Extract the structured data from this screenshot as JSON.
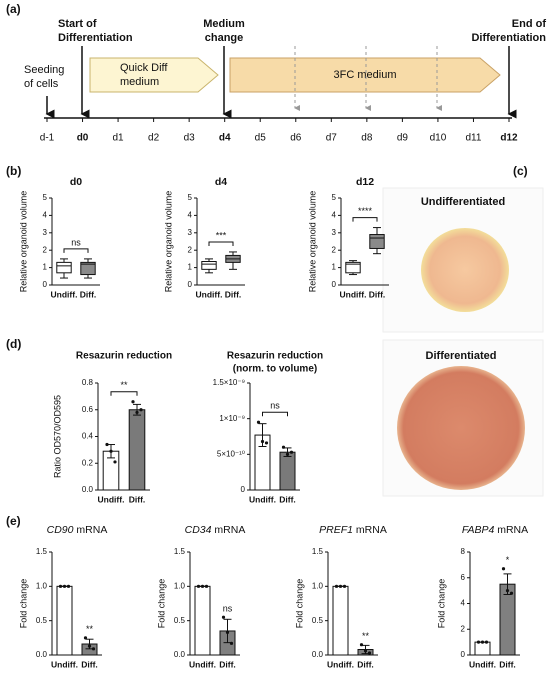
{
  "timeline": {
    "panel": "(a)",
    "seeding": [
      "Seeding",
      "of cells"
    ],
    "start": [
      "Start of",
      "Differentiation"
    ],
    "change": [
      "Medium",
      "change"
    ],
    "end": [
      "End of",
      "Differentiation"
    ],
    "quick": [
      "Quick Diff",
      "medium"
    ],
    "three": "3FC medium",
    "days": [
      "d-1",
      "d0",
      "d1",
      "d2",
      "d3",
      "d4",
      "d5",
      "d6",
      "d7",
      "d8",
      "d9",
      "d10",
      "d11",
      "d12"
    ],
    "bold": [
      1,
      5,
      13
    ]
  },
  "panels": {
    "b": "(b)",
    "c": "(c)",
    "d": "(d)",
    "e": "(e)"
  },
  "images": [
    {
      "label": "Undifferentiated"
    },
    {
      "label": "Differentiated"
    }
  ],
  "chart_data": [
    {
      "type": "box",
      "title": "d0",
      "y_label": "Relative organoid volume",
      "categories": [
        "Undiff.",
        "Diff."
      ],
      "colors": [
        "#ffffff",
        "#8a8a8a"
      ],
      "boxes": [
        {
          "min": 0.4,
          "q1": 0.7,
          "median": 1.1,
          "q3": 1.3,
          "max": 1.5
        },
        {
          "min": 0.4,
          "q1": 0.6,
          "median": 1.2,
          "q3": 1.3,
          "max": 1.5
        }
      ],
      "ylim": [
        0,
        5
      ],
      "yticks": [
        0,
        1,
        2,
        3,
        4,
        5
      ],
      "significance": "ns",
      "bracket": true
    },
    {
      "type": "box",
      "title": "d4",
      "y_label": "Relative organoid volume",
      "categories": [
        "Undiff.",
        "Diff."
      ],
      "colors": [
        "#ffffff",
        "#8a8a8a"
      ],
      "boxes": [
        {
          "min": 0.7,
          "q1": 0.9,
          "median": 1.2,
          "q3": 1.35,
          "max": 1.5
        },
        {
          "min": 0.9,
          "q1": 1.3,
          "median": 1.5,
          "q3": 1.7,
          "max": 1.9
        }
      ],
      "ylim": [
        0,
        5
      ],
      "yticks": [
        0,
        1,
        2,
        3,
        4,
        5
      ],
      "significance": "***",
      "bracket": true
    },
    {
      "type": "box",
      "title": "d12",
      "y_label": "Relative organoid volume",
      "categories": [
        "Undiff.",
        "Diff."
      ],
      "colors": [
        "#ffffff",
        "#8a8a8a"
      ],
      "boxes": [
        {
          "min": 0.6,
          "q1": 0.7,
          "median": 1.2,
          "q3": 1.3,
          "max": 1.4
        },
        {
          "min": 1.8,
          "q1": 2.1,
          "median": 2.7,
          "q3": 2.9,
          "max": 3.3
        }
      ],
      "ylim": [
        0,
        5
      ],
      "yticks": [
        0,
        1,
        2,
        3,
        4,
        5
      ],
      "significance": "****",
      "bracket": true
    },
    {
      "type": "bar",
      "title": [
        "Resazurin reduction"
      ],
      "y_label": "Ratio OD570/OD595",
      "categories": [
        "Undiff.",
        "Diff."
      ],
      "colors": [
        "#ffffff",
        "#7a7a7a"
      ],
      "values": [
        0.29,
        0.6
      ],
      "errors": [
        0.05,
        0.04
      ],
      "points": [
        [
          0.34,
          0.29,
          0.21
        ],
        [
          0.66,
          0.58,
          0.6
        ]
      ],
      "ylim": [
        0,
        0.8
      ],
      "yticks": [
        {
          "value": 0,
          "label": "0.0"
        },
        0.2,
        0.4,
        0.6,
        0.8
      ],
      "significance": "**",
      "bracket": true
    },
    {
      "type": "bar",
      "title": [
        "Resazurin reduction",
        "(norm. to volume)"
      ],
      "categories": [
        "Undiff.",
        "Diff."
      ],
      "colors": [
        "#ffffff",
        "#7a7a7a"
      ],
      "values": [
        7.7e-10,
        5.3e-10
      ],
      "errors": [
        1.6e-10,
        6e-11
      ],
      "points": [
        [
          9.5e-10,
          6.8e-10,
          6.6e-10
        ],
        [
          6e-10,
          5e-10,
          5.3e-10
        ]
      ],
      "ylim": [
        0,
        1.5e-09
      ],
      "yticks": [
        0,
        {
          "value": 5e-10,
          "label": "5×10⁻¹⁰"
        },
        {
          "value": 1e-09,
          "label": "1×10⁻⁹"
        },
        {
          "value": 1.5e-09,
          "label": "1.5×10⁻⁹"
        }
      ],
      "significance": "ns",
      "bracket": true
    },
    {
      "type": "bar",
      "gene": "CD90",
      "title": " mRNA",
      "y_label": "Fold change",
      "categories": [
        "Undiff.",
        "Diff."
      ],
      "colors": [
        "#ffffff",
        "#808080"
      ],
      "values": [
        1.0,
        0.16
      ],
      "errors": [
        0,
        0.07
      ],
      "points": [
        [
          1,
          1,
          1
        ],
        [
          0.25,
          0.13,
          0.09
        ]
      ],
      "ylim": [
        0,
        1.5
      ],
      "yticks": [
        {
          "value": 0,
          "label": "0.0"
        },
        0.5,
        {
          "value": 1,
          "label": "1.0"
        },
        1.5
      ],
      "significance": "**",
      "bracket": false
    },
    {
      "type": "bar",
      "gene": "CD34",
      "title": " mRNA",
      "y_label": "Fold change",
      "categories": [
        "Undiff.",
        "Diff."
      ],
      "colors": [
        "#ffffff",
        "#808080"
      ],
      "values": [
        1.0,
        0.35
      ],
      "errors": [
        0,
        0.17
      ],
      "points": [
        [
          1,
          1,
          1
        ],
        [
          0.55,
          0.33,
          0.17
        ]
      ],
      "ylim": [
        0,
        1.5
      ],
      "yticks": [
        {
          "value": 0,
          "label": "0.0"
        },
        0.5,
        {
          "value": 1,
          "label": "1.0"
        },
        1.5
      ],
      "significance": "ns",
      "bracket": false
    },
    {
      "type": "bar",
      "gene": "PREF1",
      "title": " mRNA",
      "y_label": "Fold change",
      "categories": [
        "Undiff.",
        "Diff."
      ],
      "colors": [
        "#ffffff",
        "#808080"
      ],
      "values": [
        1.0,
        0.08
      ],
      "errors": [
        0,
        0.06
      ],
      "points": [
        [
          1,
          1,
          1
        ],
        [
          0.15,
          0.06,
          0.03
        ]
      ],
      "ylim": [
        0,
        1.5
      ],
      "yticks": [
        {
          "value": 0,
          "label": "0.0"
        },
        0.5,
        {
          "value": 1,
          "label": "1.0"
        },
        1.5
      ],
      "significance": "**",
      "bracket": false
    },
    {
      "type": "bar",
      "gene": "FABP4",
      "title": " mRNA",
      "y_label": "Fold change",
      "categories": [
        "Undiff.",
        "Diff."
      ],
      "colors": [
        "#ffffff",
        "#808080"
      ],
      "values": [
        1.0,
        5.5
      ],
      "errors": [
        0,
        0.8
      ],
      "points": [
        [
          1,
          1,
          1
        ],
        [
          6.7,
          5.0,
          4.8
        ]
      ],
      "ylim": [
        0,
        8
      ],
      "yticks": [
        0,
        2,
        4,
        6,
        8
      ],
      "significance": "*",
      "bracket": false
    }
  ]
}
